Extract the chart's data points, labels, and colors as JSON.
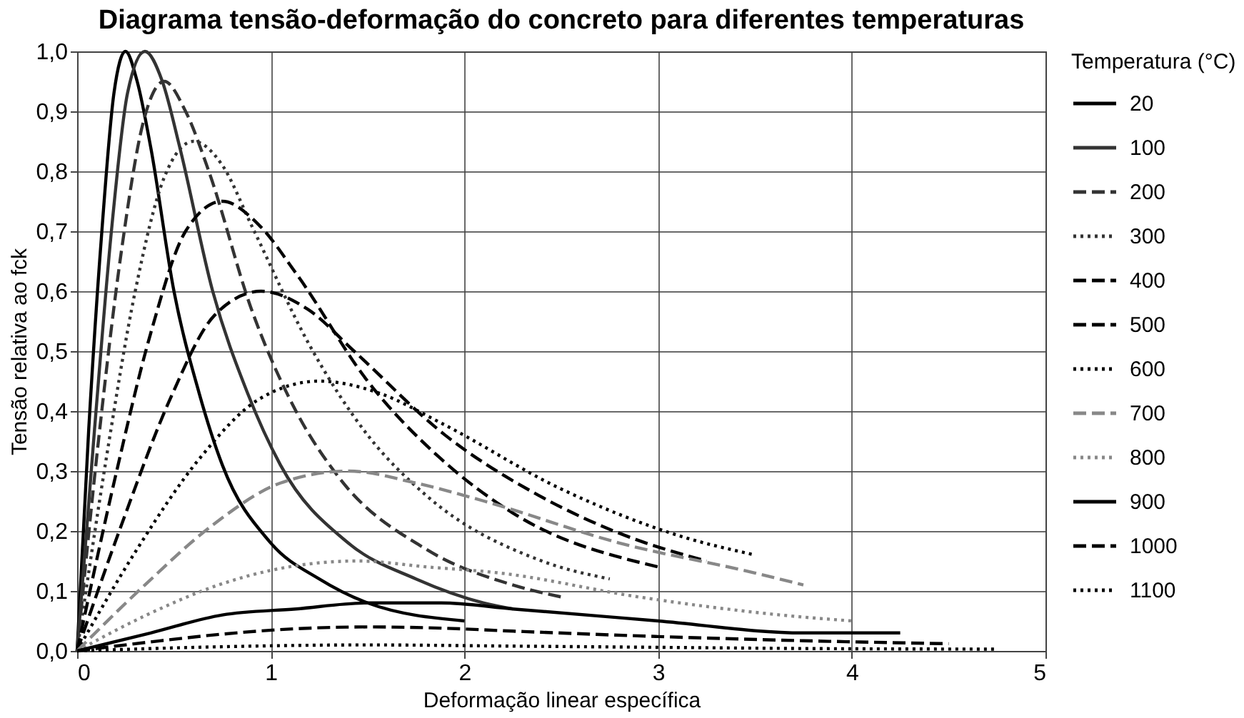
{
  "chart_data": {
    "type": "line",
    "title": "Diagrama tensão-deformação do concreto para diferentes temperaturas",
    "xlabel": "Deformação linear específica",
    "ylabel": "Tensão relativa ao fck",
    "legend_title": "Temperatura (°C)",
    "legend": "right",
    "grid": true,
    "marker": "none",
    "xlim": [
      0,
      5
    ],
    "xticks": [
      0,
      1,
      2,
      3,
      4,
      5
    ],
    "ylim": [
      0,
      1
    ],
    "yticks": [
      {
        "value": 0,
        "label": "0,0"
      },
      {
        "value": 0.1,
        "label": "0,1"
      },
      {
        "value": 0.2,
        "label": "0,2"
      },
      {
        "value": 0.3,
        "label": "0,3"
      },
      {
        "value": 0.4,
        "label": "0,4"
      },
      {
        "value": 0.5,
        "label": "0,5"
      },
      {
        "value": 0.6,
        "label": "0,6"
      },
      {
        "value": 0.7,
        "label": "0,7"
      },
      {
        "value": 0.8,
        "label": "0,8"
      },
      {
        "value": 0.9,
        "label": "0,9"
      },
      {
        "value": 1,
        "label": "1,0"
      }
    ],
    "series": [
      {
        "name": "20",
        "color": "#000000",
        "line_style": "solid",
        "x": [
          0,
          0.06,
          0.13,
          0.19,
          0.25,
          0.31,
          0.38,
          0.5,
          0.63,
          0.75,
          1.0,
          1.25,
          1.5,
          2.0
        ],
        "values": [
          0,
          0.37,
          0.71,
          0.93,
          1.0,
          0.95,
          0.84,
          0.6,
          0.43,
          0.31,
          0.18,
          0.12,
          0.08,
          0.05
        ]
      },
      {
        "name": "100",
        "color": "#333333",
        "line_style": "solid",
        "x": [
          0,
          0.09,
          0.18,
          0.26,
          0.35,
          0.44,
          0.53,
          0.7,
          0.88,
          1.05,
          1.4,
          1.75,
          2.1,
          2.25
        ],
        "values": [
          0,
          0.37,
          0.71,
          0.93,
          1.0,
          0.95,
          0.84,
          0.6,
          0.43,
          0.31,
          0.18,
          0.12,
          0.08,
          0.07
        ]
      },
      {
        "name": "200",
        "color": "#333333",
        "line_style": "dashed",
        "x": [
          0,
          0.11,
          0.23,
          0.34,
          0.45,
          0.56,
          0.68,
          0.9,
          1.13,
          1.35,
          1.8,
          2.25,
          2.5
        ],
        "values": [
          0,
          0.35,
          0.67,
          0.88,
          0.95,
          0.9,
          0.8,
          0.57,
          0.4,
          0.29,
          0.17,
          0.11,
          0.09
        ]
      },
      {
        "name": "300",
        "color": "#333333",
        "line_style": "dotted",
        "x": [
          0,
          0.15,
          0.3,
          0.45,
          0.6,
          0.75,
          0.9,
          1.2,
          1.5,
          1.8,
          2.4,
          2.75
        ],
        "values": [
          0,
          0.32,
          0.6,
          0.79,
          0.85,
          0.81,
          0.71,
          0.51,
          0.36,
          0.26,
          0.15,
          0.12
        ]
      },
      {
        "name": "400",
        "color": "#000000",
        "line_style": "dashed",
        "x": [
          0,
          0.19,
          0.38,
          0.56,
          0.75,
          0.94,
          1.13,
          1.5,
          1.88,
          2.25,
          3.0
        ],
        "values": [
          0,
          0.28,
          0.53,
          0.7,
          0.75,
          0.71,
          0.63,
          0.45,
          0.32,
          0.23,
          0.14
        ]
      },
      {
        "name": "500",
        "color": "#000000",
        "line_style": "dashed",
        "x": [
          0,
          0.24,
          0.48,
          0.71,
          0.95,
          1.19,
          1.43,
          1.9,
          2.38,
          2.85,
          3.25
        ],
        "values": [
          0,
          0.22,
          0.42,
          0.56,
          0.6,
          0.57,
          0.5,
          0.36,
          0.26,
          0.19,
          0.15
        ]
      },
      {
        "name": "600",
        "color": "#000000",
        "line_style": "dotted",
        "x": [
          0,
          0.31,
          0.63,
          0.94,
          1.25,
          1.56,
          1.88,
          2.5,
          3.13,
          3.5
        ],
        "values": [
          0,
          0.17,
          0.32,
          0.42,
          0.45,
          0.43,
          0.38,
          0.27,
          0.19,
          0.16
        ]
      },
      {
        "name": "700",
        "color": "#888888",
        "line_style": "dashed",
        "x": [
          0,
          0.35,
          0.7,
          1.05,
          1.4,
          1.75,
          2.1,
          2.8,
          3.5,
          3.75
        ],
        "values": [
          0,
          0.11,
          0.21,
          0.28,
          0.3,
          0.28,
          0.25,
          0.18,
          0.13,
          0.11
        ]
      },
      {
        "name": "800",
        "color": "#888888",
        "line_style": "dotted",
        "x": [
          0,
          0.36,
          0.73,
          1.09,
          1.45,
          1.81,
          2.18,
          2.9,
          3.63,
          4.0
        ],
        "values": [
          0,
          0.06,
          0.11,
          0.14,
          0.15,
          0.14,
          0.13,
          0.09,
          0.06,
          0.05
        ]
      },
      {
        "name": "900",
        "color": "#000000",
        "line_style": "solid",
        "x": [
          0,
          0.38,
          0.75,
          1.13,
          1.5,
          1.88,
          2.25,
          3.0,
          3.75,
          4.25
        ],
        "values": [
          0,
          0.03,
          0.06,
          0.07,
          0.08,
          0.08,
          0.07,
          0.05,
          0.03,
          0.03
        ]
      },
      {
        "name": "1000",
        "color": "#000000",
        "line_style": "dashed",
        "x": [
          0,
          0.38,
          0.75,
          1.13,
          1.5,
          1.88,
          2.25,
          3.0,
          3.75,
          4.5
        ],
        "values": [
          0,
          0.015,
          0.028,
          0.037,
          0.04,
          0.038,
          0.033,
          0.024,
          0.017,
          0.012
        ]
      },
      {
        "name": "1100",
        "color": "#000000",
        "line_style": "dotted",
        "x": [
          0,
          0.75,
          1.5,
          2.25,
          3.0,
          3.75,
          4.75
        ],
        "values": [
          0,
          0.007,
          0.01,
          0.008,
          0.006,
          0.004,
          0.003
        ]
      }
    ]
  }
}
